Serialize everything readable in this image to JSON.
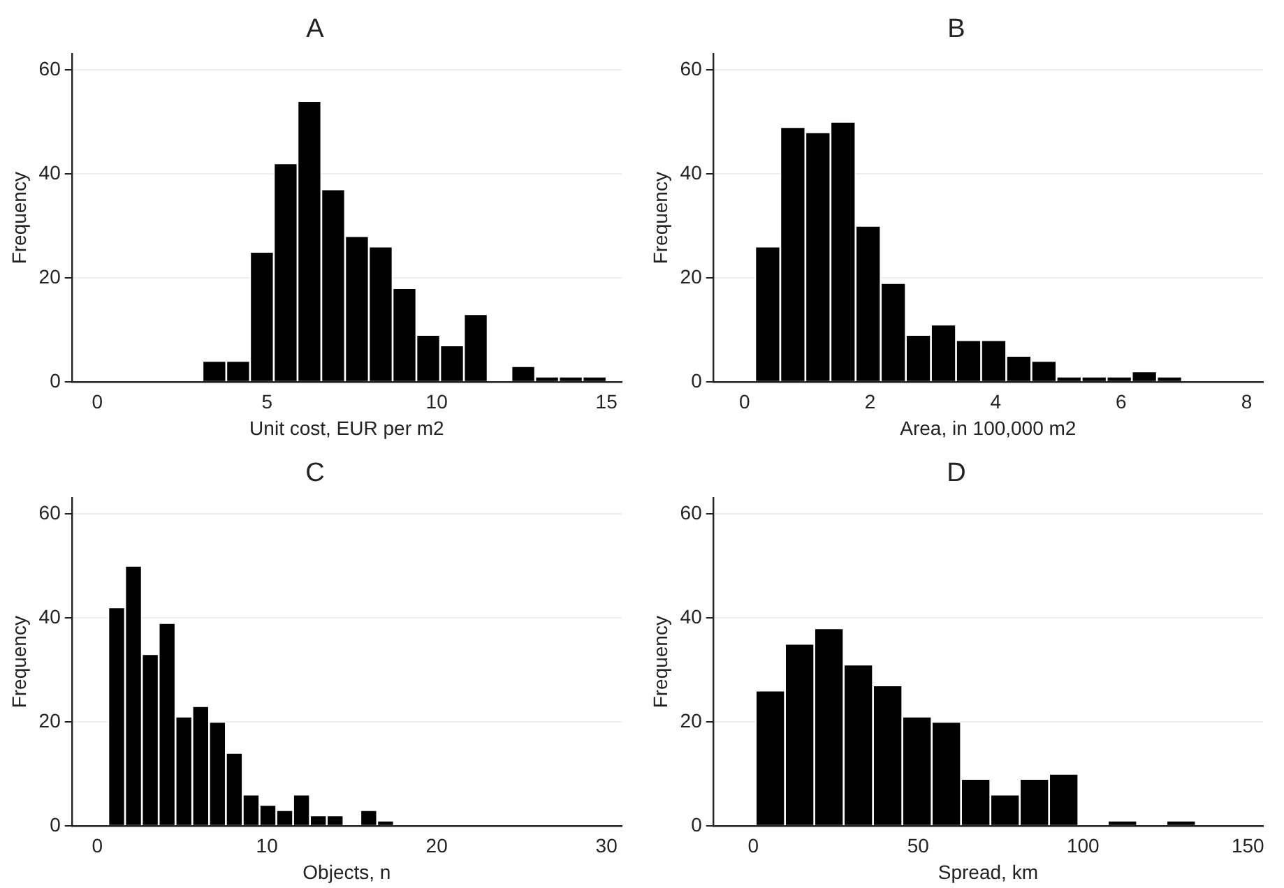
{
  "chart_data": [
    {
      "type": "histogram",
      "title": "A",
      "xlabel": "Unit cost, EUR per m2",
      "ylabel": "Frequency",
      "color": "#000000",
      "bins": [
        3.1,
        3.8,
        4.5,
        5.2,
        5.9,
        6.6,
        7.3,
        8.0,
        8.7,
        9.4,
        10.1,
        10.8,
        11.5,
        12.2,
        12.9,
        13.6,
        14.3,
        15.0
      ],
      "values": [
        4,
        4,
        25,
        42,
        54,
        37,
        28,
        26,
        18,
        9,
        7,
        13,
        0,
        3,
        1,
        1,
        1
      ],
      "xlim": [
        -0.75,
        15.45
      ],
      "xticks": [
        0,
        5,
        10,
        15
      ],
      "ylim": [
        0,
        63
      ],
      "yticks": [
        0,
        20,
        40,
        60
      ],
      "grid": "y"
    },
    {
      "type": "histogram",
      "title": "B",
      "xlabel": "Area, in 100,000 m2",
      "ylabel": "Frequency",
      "color": "#000000",
      "bins": [
        0.17,
        0.57,
        0.97,
        1.37,
        1.77,
        2.17,
        2.57,
        2.97,
        3.37,
        3.77,
        4.17,
        4.57,
        4.97,
        5.37,
        5.77,
        6.17,
        6.57,
        6.97
      ],
      "values": [
        26,
        49,
        48,
        50,
        30,
        19,
        9,
        11,
        8,
        8,
        5,
        4,
        1,
        1,
        1,
        2,
        1
      ],
      "xlim": [
        -0.5,
        8.26
      ],
      "xticks": [
        0,
        2,
        4,
        6,
        8
      ],
      "ylim": [
        0,
        63
      ],
      "yticks": [
        0,
        20,
        40,
        60
      ],
      "grid": "y"
    },
    {
      "type": "histogram",
      "title": "C",
      "xlabel": "Objects, n",
      "ylabel": "Frequency",
      "color": "#000000",
      "bins": [
        0.65,
        1.64,
        2.63,
        3.62,
        4.61,
        5.6,
        6.59,
        7.58,
        8.57,
        9.56,
        10.55,
        11.54,
        12.53,
        13.52,
        14.51,
        15.5,
        16.49,
        17.48,
        18.47,
        19.46,
        20.45,
        21.44,
        22.43,
        23.42,
        24.41,
        25.4,
        26.39,
        27.38
      ],
      "values": [
        42,
        50,
        33,
        39,
        21,
        23,
        20,
        14,
        6,
        4,
        3,
        6,
        2,
        2,
        0,
        3,
        1,
        0,
        0,
        0,
        0,
        0,
        0,
        0,
        0,
        0,
        0
      ],
      "xlim": [
        -1.5,
        30.9
      ],
      "xticks": [
        0,
        10,
        20,
        30
      ],
      "ylim": [
        0,
        63
      ],
      "yticks": [
        0,
        20,
        40,
        60
      ],
      "grid": "y"
    },
    {
      "type": "histogram",
      "title": "D",
      "xlabel": "Spread, km",
      "ylabel": "Frequency",
      "color": "#000000",
      "bins": [
        0.7,
        9.6,
        18.5,
        27.4,
        36.3,
        45.2,
        54.1,
        63,
        71.9,
        80.8,
        89.7,
        98.6,
        107.5,
        116.4,
        125.3,
        134.2
      ],
      "values": [
        26,
        35,
        38,
        31,
        27,
        21,
        20,
        9,
        6,
        9,
        10,
        0,
        1,
        0,
        1
      ],
      "xlim": [
        -12.2,
        154.6
      ],
      "xticks": [
        0,
        50,
        100,
        150
      ],
      "ylim": [
        0,
        63
      ],
      "yticks": [
        0,
        20,
        40,
        60
      ],
      "grid": "y"
    }
  ]
}
